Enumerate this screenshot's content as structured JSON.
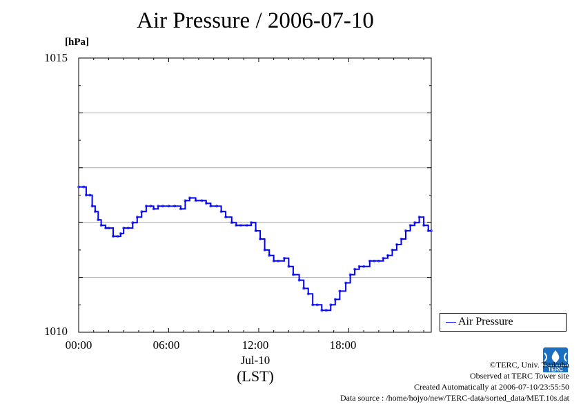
{
  "title": "Air Pressure / 2006-07-10",
  "unit_label": "[hPa]",
  "legend": {
    "label": "Air Pressure"
  },
  "x_axis": {
    "ticks": [
      "00:00",
      "06:00",
      "12:00",
      "18:00"
    ],
    "date_label": "Jul-10",
    "zone_label": "(LST)"
  },
  "y_axis": {
    "ticks": [
      "1015",
      "1010"
    ]
  },
  "credits": {
    "line1": "©TERC, Univ. Tsukuba",
    "line2": "Observed at TERC Tower site",
    "line3": "Created Automatically at 2006-07-10/23:55:50",
    "line4": "Data source : /home/hojyo/new/TERC-data/sorted_data/MET.10s.dat"
  },
  "logo": {
    "text": "TERC"
  },
  "colors": {
    "series": "#0000ff",
    "grid": "#aaaaaa",
    "logo": "#1a6fc0"
  },
  "chart_data": {
    "type": "line",
    "title": "Air Pressure / 2006-07-10",
    "xlabel": "Jul-10 (LST)",
    "ylabel": "[hPa]",
    "xlim": [
      0,
      23.5
    ],
    "ylim": [
      1010,
      1015
    ],
    "grid": true,
    "legend_position": "right, below plot",
    "series": [
      {
        "name": "Air Pressure",
        "x": [
          0.0,
          0.33,
          0.5,
          0.75,
          0.9,
          1.1,
          1.3,
          1.5,
          1.8,
          2.0,
          2.3,
          2.6,
          2.8,
          3.0,
          3.3,
          3.6,
          3.9,
          4.2,
          4.5,
          4.8,
          5.0,
          5.3,
          5.6,
          6.0,
          6.4,
          6.8,
          7.1,
          7.4,
          7.8,
          8.2,
          8.5,
          8.8,
          9.2,
          9.5,
          9.8,
          10.2,
          10.5,
          10.8,
          11.2,
          11.5,
          11.8,
          12.1,
          12.4,
          12.7,
          13.0,
          13.3,
          13.7,
          14.0,
          14.3,
          14.7,
          15.0,
          15.3,
          15.6,
          15.9,
          16.2,
          16.5,
          16.8,
          17.1,
          17.4,
          17.8,
          18.1,
          18.4,
          18.7,
          19.0,
          19.4,
          19.7,
          20.0,
          20.3,
          20.6,
          20.9,
          21.2,
          21.5,
          21.8,
          22.1,
          22.4,
          22.7,
          23.0,
          23.3,
          23.5
        ],
        "values": [
          1012.65,
          1012.65,
          1012.5,
          1012.5,
          1012.3,
          1012.2,
          1012.05,
          1011.95,
          1011.9,
          1011.9,
          1011.75,
          1011.75,
          1011.8,
          1011.9,
          1011.9,
          1012.0,
          1012.1,
          1012.2,
          1012.3,
          1012.3,
          1012.25,
          1012.3,
          1012.3,
          1012.3,
          1012.3,
          1012.25,
          1012.4,
          1012.45,
          1012.4,
          1012.4,
          1012.35,
          1012.3,
          1012.3,
          1012.2,
          1012.1,
          1012.0,
          1011.95,
          1011.95,
          1011.95,
          1012.0,
          1011.85,
          1011.7,
          1011.5,
          1011.4,
          1011.3,
          1011.3,
          1011.35,
          1011.2,
          1011.05,
          1010.95,
          1010.8,
          1010.7,
          1010.5,
          1010.5,
          1010.4,
          1010.4,
          1010.5,
          1010.6,
          1010.75,
          1010.9,
          1011.05,
          1011.15,
          1011.2,
          1011.2,
          1011.3,
          1011.3,
          1011.3,
          1011.35,
          1011.4,
          1011.5,
          1011.6,
          1011.7,
          1011.85,
          1011.95,
          1012.0,
          1012.1,
          1011.95,
          1011.85,
          1011.85
        ]
      }
    ]
  }
}
